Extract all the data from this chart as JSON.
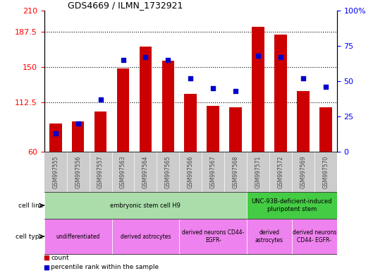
{
  "title": "GDS4669 / ILMN_1732921",
  "samples": [
    "GSM997555",
    "GSM997556",
    "GSM997557",
    "GSM997563",
    "GSM997564",
    "GSM997565",
    "GSM997566",
    "GSM997567",
    "GSM997568",
    "GSM997571",
    "GSM997572",
    "GSM997569",
    "GSM997570"
  ],
  "counts": [
    90,
    92,
    103,
    149,
    172,
    157,
    122,
    109,
    107,
    193,
    185,
    125,
    107
  ],
  "percentiles": [
    13,
    20,
    37,
    65,
    67,
    65,
    52,
    45,
    43,
    68,
    67,
    52,
    46
  ],
  "ylim_left": [
    60,
    210
  ],
  "ylim_right": [
    0,
    100
  ],
  "left_ticks": [
    60,
    112.5,
    150,
    187.5,
    210
  ],
  "left_tick_labels": [
    "60",
    "112.5",
    "150",
    "187.5",
    "210"
  ],
  "right_ticks": [
    0,
    25,
    50,
    75,
    100
  ],
  "right_tick_labels": [
    "0",
    "25",
    "50",
    "75",
    "100%"
  ],
  "bar_color": "#cc0000",
  "dot_color": "#0000cc",
  "bg_color": "#ffffff",
  "sample_bg_color": "#cccccc",
  "cell_line_groups": [
    {
      "label": "embryonic stem cell H9",
      "start": 0,
      "end": 9,
      "color": "#aaddaa"
    },
    {
      "label": "UNC-93B-deficient-induced\npluripotent stem",
      "start": 9,
      "end": 13,
      "color": "#44cc44"
    }
  ],
  "cell_type_groups": [
    {
      "label": "undifferentiated",
      "start": 0,
      "end": 3,
      "color": "#ee82ee"
    },
    {
      "label": "derived astrocytes",
      "start": 3,
      "end": 6,
      "color": "#ee82ee"
    },
    {
      "label": "derived neurons CD44-\nEGFR-",
      "start": 6,
      "end": 9,
      "color": "#ee82ee"
    },
    {
      "label": "derived\nastrocytes",
      "start": 9,
      "end": 11,
      "color": "#ee82ee"
    },
    {
      "label": "derived neurons\nCD44- EGFR-",
      "start": 11,
      "end": 13,
      "color": "#ee82ee"
    }
  ],
  "label_cell_line": "cell line",
  "label_cell_type": "cell type",
  "legend_count": "count",
  "legend_pct": "percentile rank within the sample",
  "bar_bottom": 60
}
